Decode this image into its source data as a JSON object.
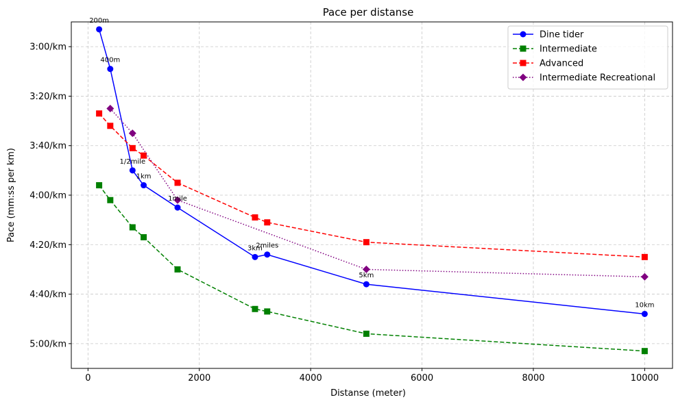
{
  "chart_data": {
    "type": "line",
    "title": "Pace per distanse",
    "xlabel": "Distanse (meter)",
    "ylabel": "Pace (mm:ss per km)",
    "xlim": [
      -300,
      10500
    ],
    "ylim_seconds": [
      170,
      310
    ],
    "y_inverted": true,
    "x_ticks": [
      0,
      2000,
      4000,
      6000,
      8000,
      10000
    ],
    "y_ticks": [
      180,
      200,
      220,
      240,
      260,
      280,
      300
    ],
    "y_tick_labels": [
      "3:00/km",
      "3:20/km",
      "3:40/km",
      "4:00/km",
      "4:20/km",
      "4:40/km",
      "5:00/km"
    ],
    "grid": true,
    "legend_position": "top-right",
    "series": [
      {
        "name": "Dine tider",
        "color": "#0000ff",
        "line_style": "solid",
        "marker": "circle",
        "x": [
          200,
          400,
          800,
          1000,
          1609,
          3000,
          3219,
          5000,
          10000
        ],
        "y_seconds": [
          173,
          189,
          230,
          236,
          245,
          265,
          264,
          276,
          288
        ],
        "point_labels": [
          "200m",
          "400m",
          "1/2mile",
          "1km",
          "1mile",
          "3km",
          "2miles",
          "5km",
          "10km"
        ]
      },
      {
        "name": "Intermediate",
        "color": "#008000",
        "line_style": "dashed",
        "marker": "square",
        "x": [
          200,
          400,
          800,
          1000,
          1609,
          3000,
          3219,
          5000,
          10000
        ],
        "y_seconds": [
          236,
          242,
          253,
          257,
          270,
          286,
          287,
          296,
          303
        ]
      },
      {
        "name": "Advanced",
        "color": "#ff0000",
        "line_style": "dashed",
        "marker": "square",
        "x": [
          200,
          400,
          800,
          1000,
          1609,
          3000,
          3219,
          5000,
          10000
        ],
        "y_seconds": [
          207,
          212,
          221,
          224,
          235,
          249,
          251,
          259,
          265
        ]
      },
      {
        "name": "Intermediate Recreational",
        "color": "#800080",
        "line_style": "dotted",
        "marker": "diamond",
        "x": [
          400,
          800,
          1609,
          5000,
          10000
        ],
        "y_seconds": [
          205,
          215,
          242,
          270,
          273
        ]
      }
    ]
  }
}
